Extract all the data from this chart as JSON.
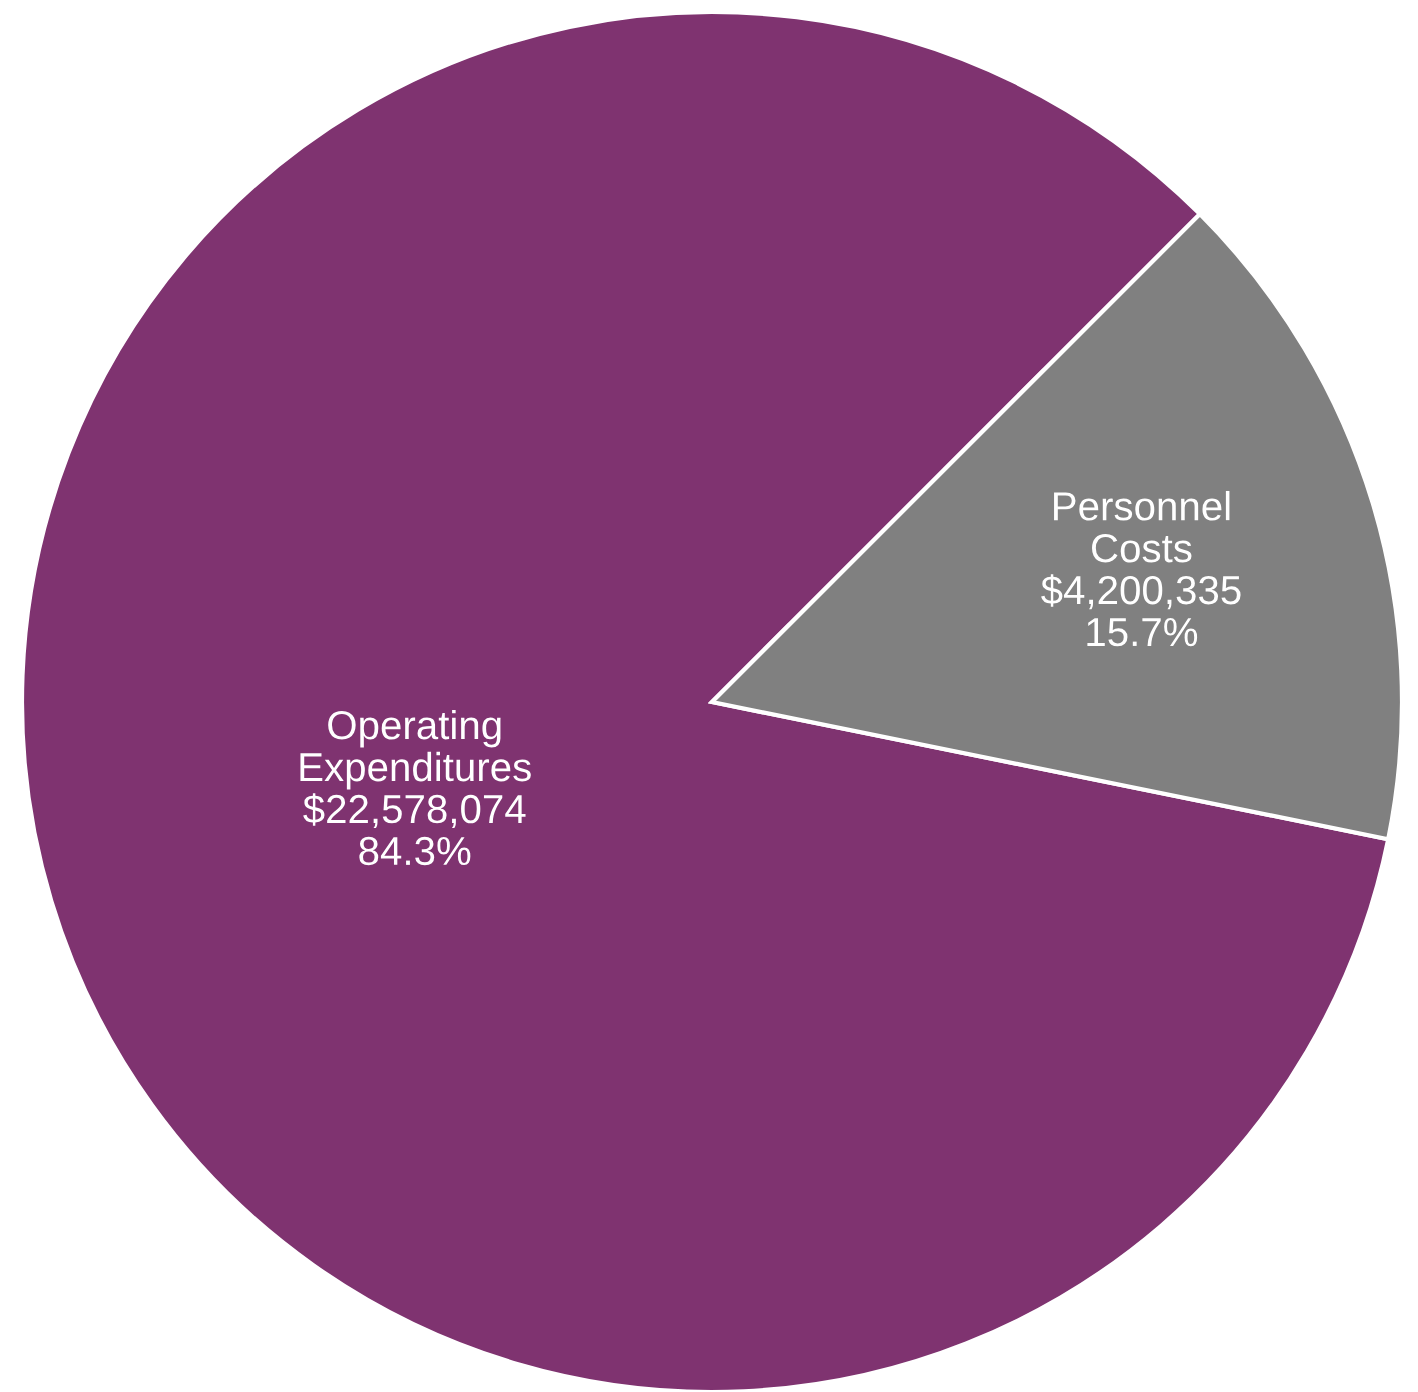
{
  "chart_data": {
    "type": "pie",
    "categories": [
      "Operating Expenditures",
      "Personnel Costs"
    ],
    "values": [
      22578074,
      4200335
    ],
    "colors": [
      "#7f3370",
      "#808080"
    ],
    "value_labels": [
      "$22,578,074\n84.3%",
      "$4,200,335\n15.7%"
    ],
    "legend": false
  }
}
